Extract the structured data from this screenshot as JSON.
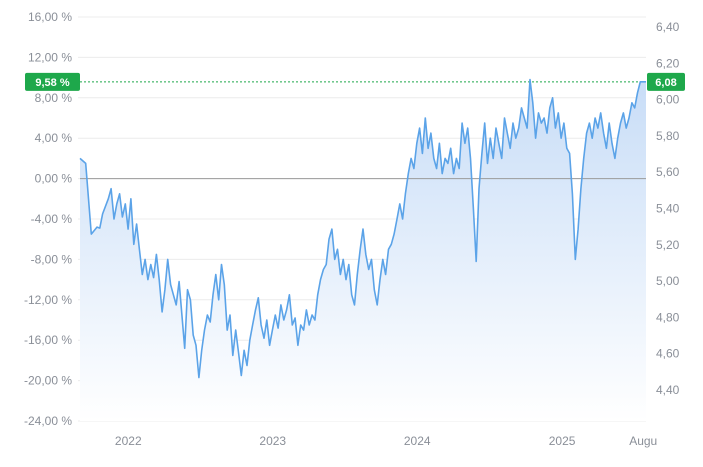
{
  "chart_data": {
    "type": "line",
    "title": "",
    "left_axis": {
      "unit": "%",
      "ticks": [
        "16,00 %",
        "12,00 %",
        "8,00 %",
        "4,00 %",
        "0,00 %",
        "-4,00 %",
        "-8,00 %",
        "-12,00 %",
        "-16,00 %",
        "-20,00 %",
        "-24,00 %"
      ],
      "tick_values": [
        16,
        12,
        8,
        4,
        0,
        -4,
        -8,
        -12,
        -16,
        -20,
        -24
      ],
      "range": [
        -24,
        16
      ]
    },
    "right_axis": {
      "ticks": [
        "6,40",
        "6,20",
        "6,00",
        "5,80",
        "5,60",
        "5,40",
        "5,20",
        "5,00",
        "4,80",
        "4,60",
        "4,40"
      ],
      "tick_values": [
        6.4,
        6.2,
        6.0,
        5.8,
        5.6,
        5.4,
        5.2,
        5.0,
        4.8,
        4.6,
        4.4
      ],
      "range": [
        4.32,
        6.49
      ]
    },
    "x_axis": {
      "range": [
        "2021-09-01",
        "2025-08-01"
      ],
      "labels": [
        {
          "text": "2022",
          "date": "2022-01-01"
        },
        {
          "text": "2023",
          "date": "2023-01-01"
        },
        {
          "text": "2024",
          "date": "2024-01-01"
        },
        {
          "text": "2025",
          "date": "2025-01-01"
        },
        {
          "text": "Augu",
          "date": "2025-07-25"
        }
      ]
    },
    "grid": "horizontal",
    "baseline_percent": 0,
    "current": {
      "percent_label": "9,58 %",
      "percent": 9.58,
      "value_label": "6,08",
      "value": 6.08
    },
    "colors": {
      "line": "#5ba3e8",
      "fill_top": "#c8ddf7",
      "fill_bottom": "#ffffff",
      "badge": "#1ea84b",
      "grid": "#ececec",
      "baseline": "#9a9a9a"
    },
    "series": [
      {
        "values_percent": [
          [
            0.0,
            2.0
          ],
          [
            0.01,
            1.5
          ],
          [
            0.02,
            -5.5
          ],
          [
            0.03,
            -4.8
          ],
          [
            0.035,
            -4.9
          ],
          [
            0.04,
            -3.5
          ],
          [
            0.05,
            -2.0
          ],
          [
            0.055,
            -1.0
          ],
          [
            0.06,
            -4.0
          ],
          [
            0.065,
            -2.5
          ],
          [
            0.07,
            -1.5
          ],
          [
            0.075,
            -3.8
          ],
          [
            0.08,
            -2.5
          ],
          [
            0.085,
            -5.0
          ],
          [
            0.09,
            -2.0
          ],
          [
            0.095,
            -6.5
          ],
          [
            0.1,
            -4.5
          ],
          [
            0.105,
            -7.0
          ],
          [
            0.11,
            -9.5
          ],
          [
            0.115,
            -8.0
          ],
          [
            0.12,
            -10.0
          ],
          [
            0.125,
            -8.5
          ],
          [
            0.13,
            -9.8
          ],
          [
            0.135,
            -7.5
          ],
          [
            0.14,
            -10.0
          ],
          [
            0.145,
            -13.2
          ],
          [
            0.15,
            -11.0
          ],
          [
            0.155,
            -8.0
          ],
          [
            0.16,
            -10.5
          ],
          [
            0.165,
            -11.5
          ],
          [
            0.17,
            -12.5
          ],
          [
            0.175,
            -10.2
          ],
          [
            0.18,
            -13.5
          ],
          [
            0.185,
            -16.8
          ],
          [
            0.19,
            -11.0
          ],
          [
            0.195,
            -12.0
          ],
          [
            0.2,
            -15.5
          ],
          [
            0.205,
            -16.5
          ],
          [
            0.21,
            -19.7
          ],
          [
            0.215,
            -17.0
          ],
          [
            0.22,
            -15.0
          ],
          [
            0.225,
            -13.5
          ],
          [
            0.23,
            -14.2
          ],
          [
            0.235,
            -11.5
          ],
          [
            0.24,
            -9.5
          ],
          [
            0.245,
            -12.0
          ],
          [
            0.25,
            -8.5
          ],
          [
            0.255,
            -10.5
          ],
          [
            0.26,
            -15.0
          ],
          [
            0.265,
            -13.5
          ],
          [
            0.27,
            -17.5
          ],
          [
            0.275,
            -15.0
          ],
          [
            0.28,
            -17.2
          ],
          [
            0.285,
            -19.5
          ],
          [
            0.29,
            -17.0
          ],
          [
            0.295,
            -18.5
          ],
          [
            0.3,
            -16.0
          ],
          [
            0.305,
            -14.5
          ],
          [
            0.31,
            -13.0
          ],
          [
            0.315,
            -11.8
          ],
          [
            0.32,
            -14.5
          ],
          [
            0.325,
            -15.8
          ],
          [
            0.33,
            -14.0
          ],
          [
            0.335,
            -16.5
          ],
          [
            0.34,
            -15.0
          ],
          [
            0.345,
            -13.5
          ],
          [
            0.35,
            -14.8
          ],
          [
            0.355,
            -12.5
          ],
          [
            0.36,
            -14.0
          ],
          [
            0.365,
            -13.0
          ],
          [
            0.37,
            -11.5
          ],
          [
            0.375,
            -14.5
          ],
          [
            0.38,
            -13.8
          ],
          [
            0.385,
            -16.5
          ],
          [
            0.39,
            -14.5
          ],
          [
            0.395,
            -15.0
          ],
          [
            0.4,
            -13.0
          ],
          [
            0.405,
            -14.5
          ],
          [
            0.41,
            -13.5
          ],
          [
            0.415,
            -14.0
          ],
          [
            0.42,
            -11.5
          ],
          [
            0.425,
            -10.0
          ],
          [
            0.43,
            -9.0
          ],
          [
            0.435,
            -8.5
          ],
          [
            0.44,
            -6.0
          ],
          [
            0.445,
            -5.0
          ],
          [
            0.45,
            -8.0
          ],
          [
            0.455,
            -7.0
          ],
          [
            0.46,
            -9.5
          ],
          [
            0.465,
            -8.0
          ],
          [
            0.47,
            -10.0
          ],
          [
            0.475,
            -8.5
          ],
          [
            0.48,
            -11.5
          ],
          [
            0.485,
            -12.5
          ],
          [
            0.49,
            -9.5
          ],
          [
            0.495,
            -7.0
          ],
          [
            0.5,
            -5.0
          ],
          [
            0.505,
            -7.5
          ],
          [
            0.51,
            -9.0
          ],
          [
            0.515,
            -8.0
          ],
          [
            0.52,
            -11.0
          ],
          [
            0.525,
            -12.5
          ],
          [
            0.53,
            -10.0
          ],
          [
            0.535,
            -8.0
          ],
          [
            0.54,
            -9.5
          ],
          [
            0.545,
            -7.0
          ],
          [
            0.55,
            -6.5
          ],
          [
            0.555,
            -5.5
          ],
          [
            0.56,
            -4.0
          ],
          [
            0.565,
            -2.5
          ],
          [
            0.57,
            -4.0
          ],
          [
            0.575,
            -1.5
          ],
          [
            0.58,
            0.5
          ],
          [
            0.585,
            2.0
          ],
          [
            0.59,
            1.0
          ],
          [
            0.595,
            3.5
          ],
          [
            0.6,
            5.0
          ],
          [
            0.605,
            2.5
          ],
          [
            0.61,
            6.0
          ],
          [
            0.615,
            3.0
          ],
          [
            0.62,
            4.5
          ],
          [
            0.625,
            2.0
          ],
          [
            0.63,
            1.0
          ],
          [
            0.635,
            3.5
          ],
          [
            0.64,
            0.5
          ],
          [
            0.645,
            2.0
          ],
          [
            0.65,
            1.5
          ],
          [
            0.655,
            3.0
          ],
          [
            0.66,
            0.5
          ],
          [
            0.665,
            2.0
          ],
          [
            0.67,
            1.0
          ],
          [
            0.675,
            5.5
          ],
          [
            0.68,
            3.5
          ],
          [
            0.685,
            5.0
          ],
          [
            0.69,
            2.0
          ],
          [
            0.695,
            -3.0
          ],
          [
            0.7,
            -8.2
          ],
          [
            0.705,
            -1.0
          ],
          [
            0.71,
            2.5
          ],
          [
            0.715,
            5.5
          ],
          [
            0.72,
            1.5
          ],
          [
            0.725,
            4.0
          ],
          [
            0.73,
            2.0
          ],
          [
            0.735,
            5.0
          ],
          [
            0.74,
            3.5
          ],
          [
            0.745,
            2.0
          ],
          [
            0.75,
            6.0
          ],
          [
            0.755,
            4.5
          ],
          [
            0.76,
            3.0
          ],
          [
            0.765,
            5.5
          ],
          [
            0.77,
            4.0
          ],
          [
            0.775,
            5.0
          ],
          [
            0.78,
            7.0
          ],
          [
            0.785,
            6.0
          ],
          [
            0.79,
            5.0
          ],
          [
            0.795,
            9.8
          ],
          [
            0.8,
            7.5
          ],
          [
            0.805,
            4.0
          ],
          [
            0.81,
            6.5
          ],
          [
            0.815,
            5.5
          ],
          [
            0.82,
            6.0
          ],
          [
            0.825,
            4.5
          ],
          [
            0.83,
            7.0
          ],
          [
            0.835,
            8.0
          ],
          [
            0.84,
            5.0
          ],
          [
            0.845,
            6.5
          ],
          [
            0.85,
            4.0
          ],
          [
            0.855,
            5.5
          ],
          [
            0.86,
            3.0
          ],
          [
            0.865,
            2.5
          ],
          [
            0.87,
            -1.5
          ],
          [
            0.875,
            -8.0
          ],
          [
            0.88,
            -5.0
          ],
          [
            0.885,
            -1.0
          ],
          [
            0.89,
            2.0
          ],
          [
            0.895,
            4.5
          ],
          [
            0.9,
            5.5
          ],
          [
            0.905,
            4.0
          ],
          [
            0.91,
            6.0
          ],
          [
            0.915,
            5.0
          ],
          [
            0.92,
            6.5
          ],
          [
            0.925,
            4.5
          ],
          [
            0.93,
            3.0
          ],
          [
            0.935,
            5.5
          ],
          [
            0.94,
            3.5
          ],
          [
            0.945,
            2.0
          ],
          [
            0.95,
            4.0
          ],
          [
            0.955,
            5.5
          ],
          [
            0.96,
            6.5
          ],
          [
            0.965,
            5.0
          ],
          [
            0.97,
            6.0
          ],
          [
            0.975,
            7.5
          ],
          [
            0.98,
            7.0
          ],
          [
            0.985,
            8.5
          ],
          [
            0.99,
            9.58
          ],
          [
            1.0,
            9.58
          ]
        ]
      }
    ]
  }
}
